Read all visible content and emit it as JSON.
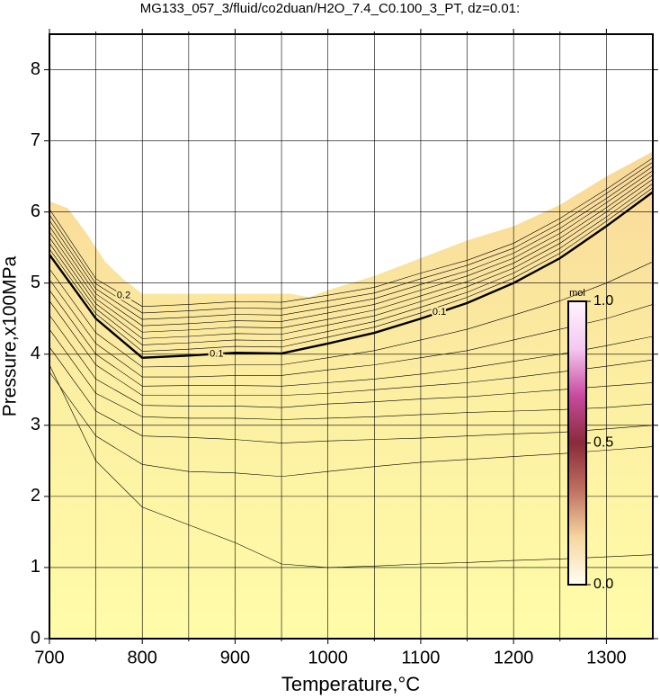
{
  "chart_data": {
    "type": "contour",
    "title": "MG133_057_3/fluid/co2duan/H2O_7.4_C0.100_3_PT, dz=0.01:",
    "x_label": "Temperature,°C",
    "y_label": "Pressure,x100MPa",
    "xlim": [
      700,
      1350
    ],
    "ylim": [
      0,
      8.5
    ],
    "xticks": [
      700,
      800,
      900,
      1000,
      1100,
      1200,
      1300
    ],
    "yticks": [
      0,
      1,
      2,
      3,
      4,
      5,
      6,
      7,
      8
    ],
    "x_gridlines": [
      750,
      850,
      950,
      1050,
      1150,
      1250
    ],
    "grid": true,
    "fill_colors": [
      "#fffca8",
      "#fcefa2",
      "#f9d898"
    ],
    "domain": {
      "x": [
        700,
        720,
        740,
        760,
        780,
        795,
        800,
        960,
        980,
        1000,
        1050,
        1100,
        1150,
        1200,
        1250,
        1300,
        1350
      ],
      "top": [
        6.15,
        6.05,
        5.7,
        5.3,
        5.05,
        4.9,
        4.85,
        4.85,
        4.8,
        4.9,
        5.1,
        5.35,
        5.6,
        5.8,
        6.1,
        6.5,
        6.85
      ]
    },
    "contour_x": [
      700,
      750,
      800,
      850,
      900,
      950,
      1000,
      1050,
      1100,
      1150,
      1200,
      1250,
      1300,
      1350
    ],
    "contours": [
      {
        "values": [
          3.85,
          2.5,
          1.85,
          1.6,
          1.35,
          1.05,
          1.0,
          1.02,
          1.05,
          1.07,
          1.1,
          1.12,
          1.15,
          1.18
        ]
      },
      {
        "values": [
          3.75,
          2.85,
          2.45,
          2.35,
          2.33,
          2.28,
          2.35,
          2.42,
          2.48,
          2.52,
          2.56,
          2.6,
          2.65,
          2.7
        ]
      },
      {
        "values": [
          4.1,
          3.2,
          2.85,
          2.83,
          2.8,
          2.75,
          2.78,
          2.8,
          2.82,
          2.85,
          2.88,
          2.9,
          2.95,
          3.0
        ]
      },
      {
        "values": [
          4.35,
          3.45,
          3.12,
          3.1,
          3.1,
          3.08,
          3.1,
          3.12,
          3.15,
          3.18,
          3.2,
          3.22,
          3.25,
          3.3
        ]
      },
      {
        "values": [
          4.55,
          3.65,
          3.28,
          3.27,
          3.27,
          3.25,
          3.3,
          3.33,
          3.37,
          3.4,
          3.45,
          3.5,
          3.55,
          3.6
        ]
      },
      {
        "values": [
          4.75,
          3.85,
          3.42,
          3.42,
          3.42,
          3.42,
          3.45,
          3.5,
          3.55,
          3.6,
          3.67,
          3.75,
          3.83,
          3.92
        ]
      },
      {
        "values": [
          4.9,
          4.0,
          3.55,
          3.56,
          3.56,
          3.55,
          3.6,
          3.65,
          3.72,
          3.8,
          3.9,
          4.0,
          4.12,
          4.25
        ]
      },
      {
        "values": [
          5.05,
          4.15,
          3.68,
          3.68,
          3.7,
          3.7,
          3.78,
          3.85,
          3.95,
          4.05,
          4.2,
          4.35,
          4.5,
          4.7
        ]
      },
      {
        "values": [
          5.2,
          4.3,
          3.82,
          3.83,
          3.85,
          3.85,
          3.95,
          4.05,
          4.2,
          4.35,
          4.55,
          4.75,
          5.0,
          5.3
        ]
      },
      {
        "values": [
          5.4,
          4.5,
          3.95,
          3.98,
          4.02,
          4.01,
          4.15,
          4.3,
          4.5,
          4.72,
          5.0,
          5.35,
          5.8,
          6.28
        ],
        "bold": true,
        "labels": [
          "0.1",
          "0.1"
        ]
      },
      {
        "values": [
          5.48,
          4.57,
          4.04,
          4.07,
          4.11,
          4.1,
          4.24,
          4.38,
          4.58,
          4.8,
          5.07,
          5.42,
          5.87,
          6.34
        ]
      },
      {
        "values": [
          5.56,
          4.64,
          4.13,
          4.16,
          4.2,
          4.19,
          4.32,
          4.46,
          4.66,
          4.87,
          5.14,
          5.49,
          5.93,
          6.4
        ]
      },
      {
        "values": [
          5.64,
          4.71,
          4.22,
          4.25,
          4.29,
          4.28,
          4.41,
          4.54,
          4.74,
          4.95,
          5.21,
          5.56,
          6.0,
          6.46
        ]
      },
      {
        "values": [
          5.72,
          4.78,
          4.31,
          4.34,
          4.38,
          4.37,
          4.49,
          4.62,
          4.82,
          5.02,
          5.28,
          5.63,
          6.06,
          6.52
        ]
      },
      {
        "values": [
          5.8,
          4.85,
          4.4,
          4.43,
          4.47,
          4.46,
          4.58,
          4.7,
          4.9,
          5.1,
          5.35,
          5.7,
          6.13,
          6.58
        ]
      },
      {
        "values": [
          5.88,
          4.92,
          4.49,
          4.52,
          4.56,
          4.55,
          4.66,
          4.78,
          4.98,
          5.17,
          5.42,
          5.77,
          6.19,
          6.64
        ]
      },
      {
        "values": [
          5.96,
          4.99,
          4.58,
          4.61,
          4.65,
          4.64,
          4.75,
          4.86,
          5.06,
          5.25,
          5.49,
          5.84,
          6.26,
          6.7
        ]
      },
      {
        "values": [
          6.04,
          5.06,
          4.67,
          4.7,
          4.74,
          4.73,
          4.83,
          4.94,
          5.14,
          5.32,
          5.56,
          5.91,
          6.32,
          6.76
        ],
        "labels": [
          "0.2"
        ]
      }
    ],
    "colorbar": {
      "label": "mol",
      "lim": [
        0,
        1
      ],
      "ticks": [
        {
          "value": 0,
          "label": "0.0"
        },
        {
          "value": 0.5,
          "label": "0.5"
        },
        {
          "value": 1,
          "label": "1.0"
        }
      ],
      "colors": [
        "#fffff0",
        "#f6d6a0",
        "#c07060",
        "#8a2a3a",
        "#c84a9e",
        "#f4c8f0",
        "#fff4ff"
      ]
    }
  }
}
